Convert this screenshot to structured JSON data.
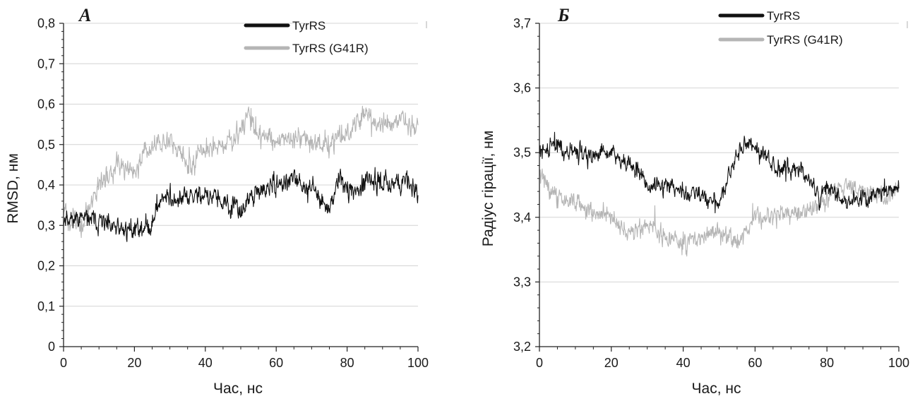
{
  "chart_data": [
    {
      "type": "line",
      "panel_label": "А",
      "xlabel": "Час, нс",
      "ylabel": "RMSD, нм",
      "xlim": [
        0,
        100
      ],
      "ylim": [
        0,
        0.8
      ],
      "xticks": [
        "0",
        "20",
        "40",
        "60",
        "80",
        "100"
      ],
      "yticks": [
        "0",
        "0,1",
        "0,2",
        "0,3",
        "0,4",
        "0,5",
        "0,6",
        "0,7",
        "0,8"
      ],
      "grid": "horizontal",
      "legend_position": "top-right",
      "series": [
        {
          "name": "TyrRS",
          "color": "#111111",
          "x": [
            0,
            5,
            10,
            15,
            20,
            25,
            28,
            30,
            35,
            40,
            45,
            50,
            55,
            60,
            65,
            70,
            75,
            78,
            80,
            85,
            90,
            95,
            100
          ],
          "y": [
            0.32,
            0.32,
            0.31,
            0.29,
            0.29,
            0.3,
            0.38,
            0.36,
            0.37,
            0.38,
            0.35,
            0.34,
            0.38,
            0.4,
            0.41,
            0.39,
            0.34,
            0.43,
            0.38,
            0.4,
            0.41,
            0.41,
            0.39
          ]
        },
        {
          "name": "TyrRS (G41R)",
          "color": "#b5b5b5",
          "x": [
            0,
            5,
            10,
            15,
            20,
            25,
            30,
            35,
            40,
            45,
            50,
            52,
            55,
            60,
            65,
            70,
            75,
            80,
            85,
            90,
            95,
            100
          ],
          "y": [
            0.33,
            0.3,
            0.4,
            0.45,
            0.44,
            0.49,
            0.51,
            0.45,
            0.48,
            0.5,
            0.53,
            0.58,
            0.52,
            0.51,
            0.52,
            0.51,
            0.5,
            0.53,
            0.58,
            0.55,
            0.56,
            0.54
          ]
        }
      ]
    },
    {
      "type": "line",
      "panel_label": "Б",
      "xlabel": "Час, нс",
      "ylabel": "Радіус гірації, нм",
      "xlim": [
        0,
        100
      ],
      "ylim": [
        3.2,
        3.7
      ],
      "xticks": [
        "0",
        "20",
        "40",
        "60",
        "80",
        "100"
      ],
      "yticks": [
        "3,2",
        "3,3",
        "3,4",
        "3,5",
        "3,6",
        "3,7"
      ],
      "grid": "horizontal",
      "legend_position": "top-right",
      "series": [
        {
          "name": "TyrRS",
          "color": "#111111",
          "x": [
            0,
            5,
            10,
            15,
            20,
            25,
            30,
            35,
            40,
            45,
            50,
            55,
            58,
            60,
            65,
            70,
            75,
            78,
            80,
            85,
            90,
            95,
            100
          ],
          "y": [
            3.5,
            3.51,
            3.5,
            3.5,
            3.5,
            3.48,
            3.45,
            3.45,
            3.44,
            3.43,
            3.42,
            3.5,
            3.51,
            3.51,
            3.48,
            3.48,
            3.46,
            3.43,
            3.45,
            3.42,
            3.43,
            3.44,
            3.44
          ]
        },
        {
          "name": "TyrRS (G41R)",
          "color": "#b5b5b5",
          "x": [
            0,
            5,
            10,
            15,
            20,
            25,
            30,
            35,
            40,
            45,
            50,
            55,
            60,
            65,
            70,
            75,
            80,
            85,
            90,
            95,
            100
          ],
          "y": [
            3.47,
            3.43,
            3.42,
            3.41,
            3.4,
            3.37,
            3.39,
            3.37,
            3.36,
            3.37,
            3.38,
            3.36,
            3.4,
            3.4,
            3.41,
            3.41,
            3.43,
            3.45,
            3.44,
            3.43,
            3.44
          ]
        }
      ]
    }
  ]
}
